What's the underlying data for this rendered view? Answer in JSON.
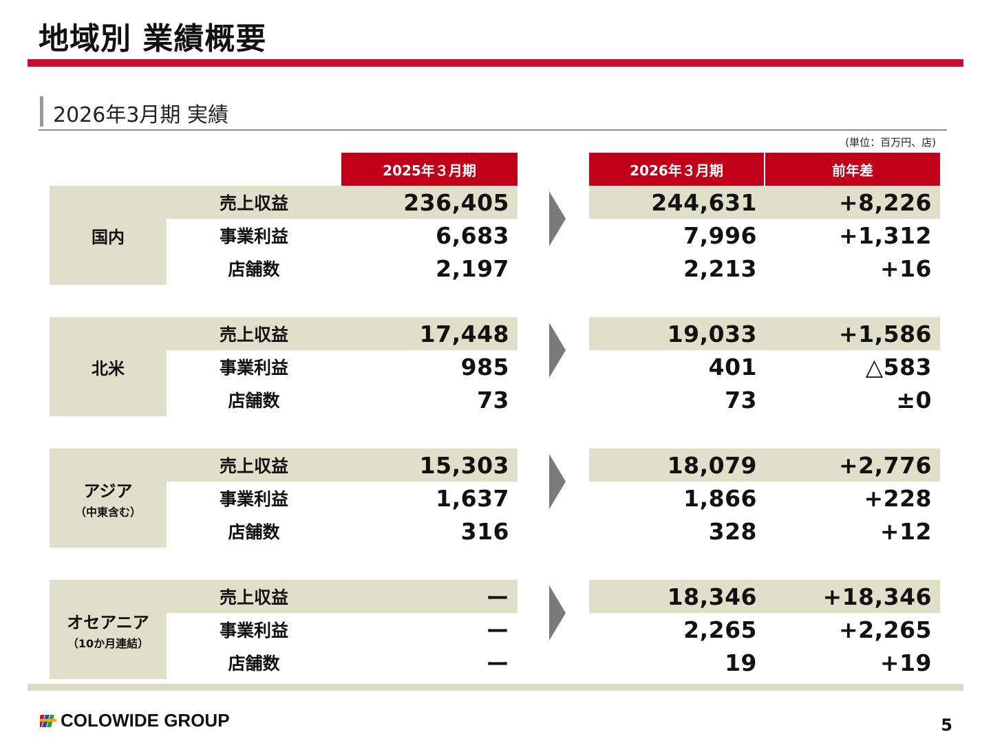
{
  "title": "地域別 業績概要",
  "subtitle": "2026年3月期 実績",
  "unit_note": "(単位：百万円、店)",
  "columns": {
    "prev": "2025年３月期",
    "curr": "2026年３月期",
    "diff": "前年差"
  },
  "metrics": [
    "売上収益",
    "事業利益",
    "店舗数"
  ],
  "regions": [
    {
      "name": "国内",
      "sub": "",
      "rows": [
        {
          "metric": "売上収益",
          "prev": "236,405",
          "curr": "244,631",
          "diff": "+8,226"
        },
        {
          "metric": "事業利益",
          "prev": "6,683",
          "curr": "7,996",
          "diff": "+1,312"
        },
        {
          "metric": "店舗数",
          "prev": "2,197",
          "curr": "2,213",
          "diff": "+16"
        }
      ]
    },
    {
      "name": "北米",
      "sub": "",
      "rows": [
        {
          "metric": "売上収益",
          "prev": "17,448",
          "curr": "19,033",
          "diff": "+1,586"
        },
        {
          "metric": "事業利益",
          "prev": "985",
          "curr": "401",
          "diff": "△583"
        },
        {
          "metric": "店舗数",
          "prev": "73",
          "curr": "73",
          "diff": "±0"
        }
      ]
    },
    {
      "name": "アジア",
      "sub": "（中東含む）",
      "rows": [
        {
          "metric": "売上収益",
          "prev": "15,303",
          "curr": "18,079",
          "diff": "+2,776"
        },
        {
          "metric": "事業利益",
          "prev": "1,637",
          "curr": "1,866",
          "diff": "+228"
        },
        {
          "metric": "店舗数",
          "prev": "316",
          "curr": "328",
          "diff": "+12"
        }
      ]
    },
    {
      "name": "オセアニア",
      "sub": "（10か月連結）",
      "rows": [
        {
          "metric": "売上収益",
          "prev": "ー",
          "curr": "18,346",
          "diff": "+18,346"
        },
        {
          "metric": "事業利益",
          "prev": "ー",
          "curr": "2,265",
          "diff": "+2,265"
        },
        {
          "metric": "店舗数",
          "prev": "ー",
          "curr": "19",
          "diff": "+19"
        }
      ]
    }
  ],
  "footer": {
    "logo_text": "COLOWIDE GROUP",
    "page_number": "5"
  },
  "colors": {
    "accent_red": "#c8102e",
    "header_red": "#c00018",
    "shade": "#e0e0ca",
    "arrow": "#7a7a7a"
  }
}
